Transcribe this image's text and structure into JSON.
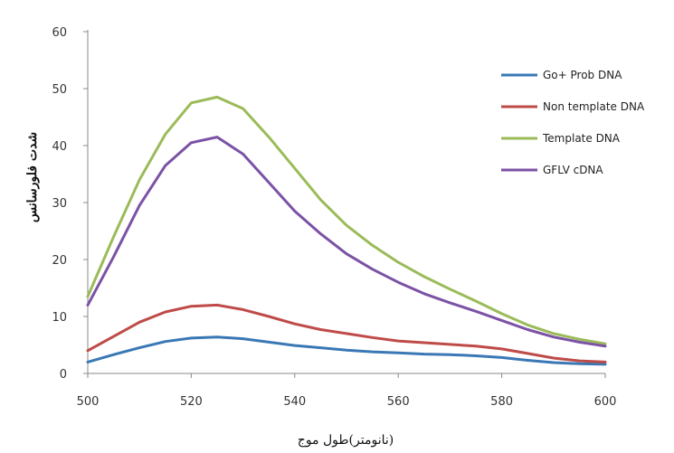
{
  "chart_data": {
    "type": "line",
    "title": "",
    "xlabel": "(نانومتر)طول موج",
    "ylabel": "شدت فلورسانس",
    "xlim": [
      500,
      600
    ],
    "ylim": [
      0,
      60
    ],
    "xticks": [
      500,
      520,
      540,
      560,
      580,
      600
    ],
    "yticks": [
      0,
      10,
      20,
      30,
      40,
      50,
      60
    ],
    "grid": false,
    "legend_position": "right",
    "series": [
      {
        "name": "Go+ Prob DNA",
        "color": "#3a78b5",
        "x": [
          500,
          505,
          510,
          515,
          520,
          525,
          530,
          535,
          540,
          545,
          550,
          555,
          560,
          565,
          570,
          575,
          580,
          585,
          590,
          595,
          600
        ],
        "y": [
          2,
          3.3,
          4.5,
          5.6,
          6.2,
          6.4,
          6.1,
          5.5,
          4.9,
          4.5,
          4.1,
          3.8,
          3.6,
          3.4,
          3.3,
          3.1,
          2.8,
          2.3,
          1.9,
          1.7,
          1.6
        ]
      },
      {
        "name": "Non template DNA",
        "color": "#be4b48",
        "x": [
          500,
          505,
          510,
          515,
          520,
          525,
          530,
          535,
          540,
          545,
          550,
          555,
          560,
          565,
          570,
          575,
          580,
          585,
          590,
          595,
          600
        ],
        "y": [
          4,
          6.5,
          9,
          10.8,
          11.8,
          12,
          11.2,
          10,
          8.7,
          7.7,
          7,
          6.3,
          5.7,
          5.4,
          5.1,
          4.8,
          4.3,
          3.5,
          2.7,
          2.2,
          2
        ]
      },
      {
        "name": "Template DNA",
        "color": "#9bbb59",
        "x": [
          500,
          505,
          510,
          515,
          520,
          525,
          530,
          535,
          540,
          545,
          550,
          555,
          560,
          565,
          570,
          575,
          580,
          585,
          590,
          595,
          600
        ],
        "y": [
          13.5,
          24,
          34,
          42,
          47.5,
          48.5,
          46.5,
          41.5,
          36,
          30.5,
          26,
          22.5,
          19.5,
          17,
          14.8,
          12.7,
          10.5,
          8.5,
          7,
          6,
          5.2
        ]
      },
      {
        "name": "GFLV cDNA",
        "color": "#7b52a5",
        "x": [
          500,
          505,
          510,
          515,
          520,
          525,
          530,
          535,
          540,
          545,
          550,
          555,
          560,
          565,
          570,
          575,
          580,
          585,
          590,
          595,
          600
        ],
        "y": [
          12,
          20.5,
          29.5,
          36.5,
          40.5,
          41.5,
          38.5,
          33.5,
          28.5,
          24.5,
          21,
          18.3,
          16,
          14,
          12.4,
          10.9,
          9.3,
          7.7,
          6.4,
          5.5,
          4.8
        ]
      }
    ]
  }
}
